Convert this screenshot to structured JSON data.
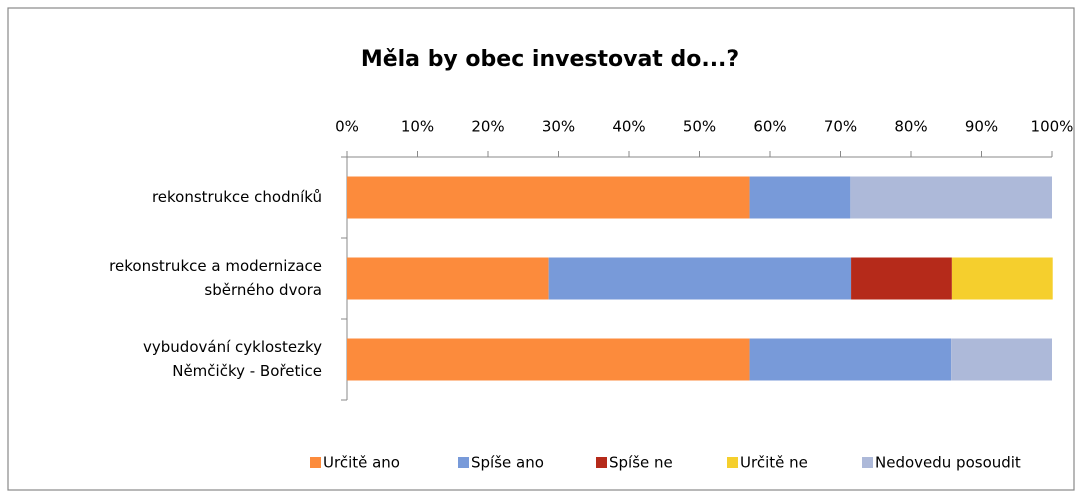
{
  "chart_data": {
    "type": "stacked-bar-horizontal",
    "title": "Měla by obec investovat do...?",
    "categories": [
      [
        "rekonstrukce chodníků"
      ],
      [
        "rekonstrukce a modernizace",
        "sběrného dvora"
      ],
      [
        "vybudování cyklostezky",
        "Němčičky - Bořetice"
      ]
    ],
    "series": [
      {
        "name": "Určitě ano",
        "color": "#fc8b3c",
        "values": [
          57.1,
          28.6,
          57.1
        ]
      },
      {
        "name": "Spíše ano",
        "color": "#789ad9",
        "values": [
          14.3,
          42.9,
          28.6
        ]
      },
      {
        "name": "Spíše ne",
        "color": "#b52a1a",
        "values": [
          0,
          14.3,
          0
        ]
      },
      {
        "name": "Určitě ne",
        "color": "#f5cf2d",
        "values": [
          0,
          14.3,
          0
        ]
      },
      {
        "name": "Nedovedu posoudit",
        "color": "#adb9d9",
        "values": [
          28.6,
          0,
          14.3
        ]
      }
    ],
    "xlim": [
      0,
      100
    ],
    "xticks": [
      {
        "value": 0,
        "label": "0%"
      },
      {
        "value": 10,
        "label": "10%"
      },
      {
        "value": 20,
        "label": "20%"
      },
      {
        "value": 30,
        "label": "30%"
      },
      {
        "value": 40,
        "label": "40%"
      },
      {
        "value": 50,
        "label": "50%"
      },
      {
        "value": 60,
        "label": "60%"
      },
      {
        "value": 70,
        "label": "70%"
      },
      {
        "value": 80,
        "label": "80%"
      },
      {
        "value": 90,
        "label": "90%"
      },
      {
        "value": 100,
        "label": "100%"
      }
    ],
    "legend": "bottom"
  }
}
